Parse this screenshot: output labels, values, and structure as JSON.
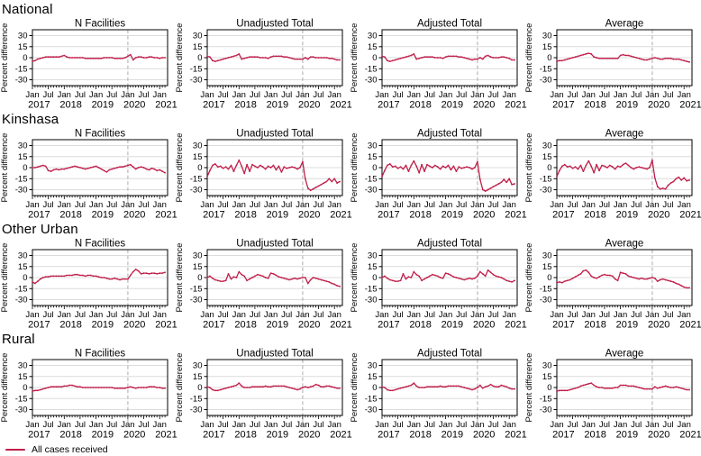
{
  "legend": {
    "label": "All cases received"
  },
  "colors": {
    "line": "#c01f4a",
    "grid": "#dcdcdc",
    "vline": "#b3b3b3",
    "axis": "#000000",
    "background": "#ffffff"
  },
  "chart_data": {
    "type": "line",
    "series_name": "All cases received",
    "ylabel": "Percent difference",
    "yticks": [
      30,
      15,
      0,
      -15,
      -30
    ],
    "ylim": [
      -37,
      37
    ],
    "x_start": "Jan 2017",
    "x_end": "Mar 2021",
    "x_major_labels": [
      "Jan",
      "Jul",
      "Jan",
      "Jul",
      "Jan",
      "Jul",
      "Jan",
      "Jul",
      "Jan"
    ],
    "x_year_labels": [
      "2017",
      "2018",
      "2019",
      "2020",
      "2021"
    ],
    "vline_month_index": 36,
    "column_titles": [
      "N Facilities",
      "Unadjusted Total",
      "Adjusted Total",
      "Average"
    ],
    "rows": [
      {
        "label": "National",
        "panels": [
          {
            "title": "N Facilities",
            "values": [
              -5,
              -4,
              -2,
              -1,
              0,
              1,
              1,
              1,
              1,
              1,
              1,
              2,
              3,
              1,
              0,
              0,
              0,
              0,
              0,
              0,
              -1,
              -1,
              -1,
              -1,
              -1,
              -1,
              -1,
              0,
              0,
              0,
              0,
              -1,
              -1,
              -1,
              -1,
              0,
              2,
              4,
              -3,
              0,
              1,
              1,
              0,
              0,
              1,
              1,
              0,
              0,
              -1,
              0,
              0
            ]
          },
          {
            "title": "Unadjusted Total",
            "values": [
              2,
              1,
              -4,
              -5,
              -4,
              -3,
              -2,
              -1,
              0,
              1,
              2,
              3,
              5,
              -2,
              -1,
              0,
              1,
              1,
              1,
              1,
              0,
              0,
              0,
              -1,
              1,
              2,
              2,
              2,
              2,
              1,
              1,
              0,
              -1,
              -2,
              -2,
              -2,
              -2,
              0,
              -2,
              1,
              1,
              0,
              0,
              0,
              0,
              0,
              -1,
              -1,
              -2,
              -3,
              -3
            ]
          },
          {
            "title": "Adjusted Total",
            "values": [
              2,
              1,
              -4,
              -5,
              -4,
              -3,
              -2,
              -1,
              0,
              1,
              2,
              3,
              5,
              -2,
              -1,
              0,
              1,
              1,
              1,
              1,
              0,
              0,
              0,
              -1,
              1,
              2,
              2,
              2,
              2,
              1,
              1,
              0,
              -1,
              -2,
              -3,
              -2,
              -2,
              0,
              -2,
              2,
              3,
              1,
              0,
              0,
              0,
              1,
              1,
              0,
              -1,
              -3,
              -3
            ]
          },
          {
            "title": "Average",
            "values": [
              -5,
              -4,
              -4,
              -3,
              -2,
              -1,
              0,
              1,
              2,
              3,
              4,
              5,
              6,
              5,
              1,
              0,
              -1,
              -1,
              -1,
              -1,
              -1,
              -1,
              -1,
              -1,
              3,
              4,
              3,
              3,
              2,
              1,
              0,
              -1,
              -2,
              -3,
              -3,
              -2,
              -1,
              0,
              -1,
              -2,
              -2,
              -1,
              -1,
              -1,
              -2,
              -2,
              -2,
              -3,
              -4,
              -5,
              -6
            ]
          }
        ]
      },
      {
        "label": "Kinshasa",
        "panels": [
          {
            "title": "N Facilities",
            "values": [
              0,
              0,
              1,
              2,
              3,
              2,
              -4,
              -5,
              -3,
              -2,
              -3,
              -2,
              -2,
              -1,
              0,
              1,
              2,
              1,
              0,
              -1,
              -2,
              -1,
              0,
              1,
              2,
              0,
              -2,
              -4,
              -6,
              -3,
              -2,
              -1,
              0,
              1,
              1,
              2,
              3,
              4,
              1,
              -2,
              0,
              1,
              0,
              -2,
              -3,
              -1,
              -2,
              -4,
              -3,
              -5,
              -7
            ]
          },
          {
            "title": "Unadjusted Total",
            "values": [
              -12,
              -4,
              3,
              5,
              1,
              2,
              -1,
              1,
              -2,
              3,
              -5,
              3,
              10,
              2,
              -8,
              4,
              -5,
              4,
              2,
              0,
              3,
              1,
              -2,
              2,
              0,
              3,
              -3,
              2,
              -6,
              1,
              -1,
              0,
              1,
              0,
              -2,
              0,
              8,
              -15,
              -28,
              -31,
              -29,
              -27,
              -25,
              -23,
              -21,
              -19,
              -15,
              -19,
              -15,
              -21,
              -19
            ]
          },
          {
            "title": "Adjusted Total",
            "values": [
              -12,
              -4,
              3,
              5,
              1,
              2,
              -1,
              1,
              -2,
              3,
              -5,
              3,
              9,
              2,
              -7,
              4,
              -5,
              4,
              2,
              0,
              3,
              1,
              -2,
              2,
              0,
              3,
              -3,
              2,
              -5,
              1,
              -1,
              0,
              1,
              0,
              -2,
              0,
              8,
              -16,
              -30,
              -32,
              -30,
              -28,
              -26,
              -24,
              -22,
              -20,
              -16,
              -20,
              -15,
              -23,
              -22
            ]
          },
          {
            "title": "Average",
            "values": [
              -12,
              -4,
              2,
              4,
              1,
              2,
              -1,
              1,
              -2,
              3,
              -5,
              3,
              9,
              2,
              -7,
              4,
              -4,
              3,
              2,
              0,
              3,
              1,
              -2,
              2,
              1,
              4,
              6,
              3,
              0,
              -2,
              0,
              1,
              0,
              -1,
              -2,
              0,
              10,
              -14,
              -26,
              -29,
              -28,
              -29,
              -24,
              -21,
              -19,
              -15,
              -13,
              -17,
              -14,
              -18,
              -17
            ]
          }
        ]
      },
      {
        "label": "Other Urban",
        "panels": [
          {
            "title": "N Facilities",
            "values": [
              -6,
              -8,
              -5,
              -2,
              0,
              1,
              1,
              2,
              2,
              2,
              2,
              2,
              2,
              3,
              3,
              3,
              4,
              4,
              3,
              3,
              2,
              3,
              3,
              2,
              2,
              1,
              0,
              0,
              -1,
              -2,
              -2,
              -1,
              -2,
              -3,
              -2,
              -2,
              -2,
              3,
              8,
              11,
              9,
              5,
              6,
              6,
              5,
              6,
              6,
              5,
              6,
              6,
              7
            ]
          },
          {
            "title": "Unadjusted Total",
            "values": [
              0,
              2,
              -1,
              -3,
              -4,
              -5,
              -5,
              -4,
              5,
              -2,
              1,
              0,
              8,
              4,
              2,
              -4,
              -2,
              0,
              2,
              4,
              3,
              2,
              0,
              -1,
              6,
              5,
              3,
              1,
              0,
              -1,
              -2,
              -3,
              -2,
              -1,
              -2,
              -1,
              0,
              0,
              -8,
              -3,
              0,
              -1,
              -2,
              -3,
              -4,
              -5,
              -6,
              -8,
              -9,
              -11,
              -12
            ]
          },
          {
            "title": "Adjusted Total",
            "values": [
              0,
              2,
              -1,
              -3,
              -4,
              -5,
              -5,
              -4,
              5,
              -2,
              1,
              0,
              8,
              4,
              2,
              -4,
              -2,
              0,
              2,
              4,
              3,
              2,
              0,
              -1,
              6,
              5,
              3,
              1,
              0,
              -1,
              -2,
              -3,
              -2,
              -1,
              -2,
              -1,
              2,
              8,
              5,
              2,
              10,
              7,
              4,
              2,
              1,
              0,
              -2,
              -4,
              -5,
              -6,
              -4
            ]
          },
          {
            "title": "Average",
            "values": [
              -7,
              -6,
              -7,
              -5,
              -4,
              -3,
              -1,
              1,
              3,
              5,
              9,
              10,
              7,
              2,
              0,
              -1,
              1,
              3,
              4,
              3,
              3,
              2,
              -2,
              -4,
              7,
              6,
              5,
              2,
              1,
              0,
              -1,
              -2,
              -1,
              -2,
              -2,
              -1,
              0,
              -1,
              -5,
              -3,
              -2,
              -3,
              -4,
              -5,
              -6,
              -8,
              -9,
              -11,
              -13,
              -14,
              -14
            ]
          }
        ]
      },
      {
        "label": "Rural",
        "panels": [
          {
            "title": "N Facilities",
            "values": [
              -5,
              -4,
              -4,
              -3,
              -2,
              -1,
              0,
              1,
              1,
              1,
              1,
              1,
              2,
              2,
              3,
              3,
              2,
              1,
              1,
              0,
              0,
              0,
              0,
              0,
              0,
              0,
              0,
              0,
              0,
              0,
              0,
              -1,
              -1,
              -1,
              -1,
              -1,
              0,
              1,
              0,
              -1,
              0,
              0,
              0,
              0,
              1,
              1,
              1,
              0,
              0,
              -1,
              -1
            ]
          },
          {
            "title": "Unadjusted Total",
            "values": [
              1,
              0,
              -3,
              -4,
              -4,
              -3,
              -2,
              -1,
              0,
              1,
              2,
              3,
              6,
              2,
              0,
              0,
              0,
              1,
              1,
              1,
              1,
              1,
              2,
              1,
              1,
              2,
              2,
              2,
              2,
              2,
              1,
              0,
              -1,
              -2,
              -3,
              -2,
              0,
              1,
              0,
              1,
              2,
              4,
              3,
              1,
              1,
              2,
              2,
              1,
              0,
              -1,
              -1
            ]
          },
          {
            "title": "Adjusted Total",
            "values": [
              1,
              0,
              -3,
              -4,
              -4,
              -3,
              -2,
              -1,
              0,
              1,
              2,
              3,
              6,
              2,
              0,
              0,
              0,
              1,
              1,
              1,
              1,
              1,
              2,
              1,
              1,
              2,
              2,
              2,
              2,
              2,
              1,
              0,
              -1,
              -2,
              -3,
              -2,
              0,
              3,
              -1,
              1,
              2,
              4,
              2,
              1,
              1,
              3,
              2,
              1,
              -1,
              -2,
              -2
            ]
          },
          {
            "title": "Average",
            "values": [
              -5,
              -4,
              -4,
              -4,
              -4,
              -3,
              -2,
              -1,
              0,
              2,
              3,
              4,
              5,
              6,
              3,
              1,
              0,
              0,
              -1,
              -1,
              -1,
              -1,
              0,
              0,
              3,
              3,
              3,
              2,
              2,
              2,
              1,
              0,
              -1,
              -2,
              -2,
              -2,
              -2,
              1,
              -1,
              0,
              1,
              2,
              1,
              0,
              0,
              1,
              0,
              -1,
              -2,
              -3,
              -3
            ]
          }
        ]
      }
    ]
  }
}
